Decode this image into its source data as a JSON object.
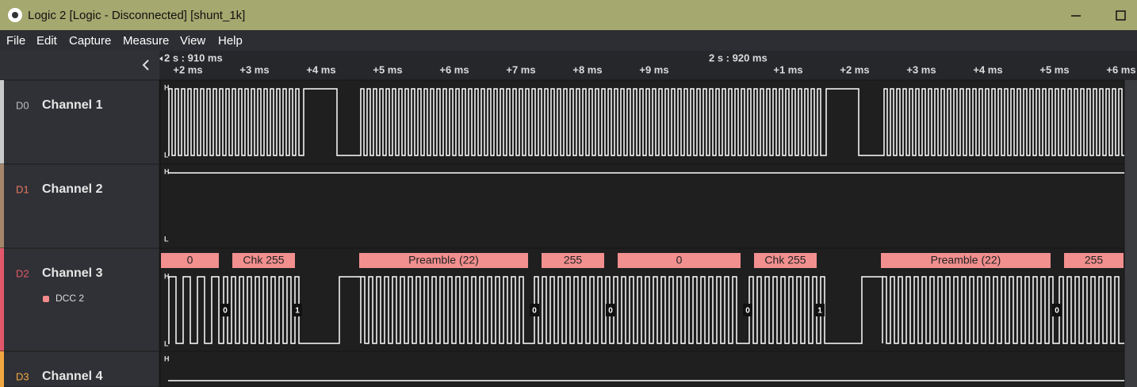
{
  "window": {
    "title": "Logic 2 [Logic - Disconnected] [shunt_1k]"
  },
  "menu": [
    "File",
    "Edit",
    "Capture",
    "Measure",
    "View",
    "Help"
  ],
  "timeline": {
    "markers": [
      "2 s : 910 ms",
      "2 s : 920 ms"
    ],
    "ticks": [
      "+2 ms",
      "+3 ms",
      "+4 ms",
      "+5 ms",
      "+6 ms",
      "+7 ms",
      "+8 ms",
      "+9 ms",
      "+1 ms",
      "+2 ms",
      "+3 ms",
      "+4 ms",
      "+5 ms",
      "+6 ms"
    ]
  },
  "channels": [
    {
      "id": "D0",
      "name": "Channel 1",
      "high": "H",
      "low": "L"
    },
    {
      "id": "D1",
      "name": "Channel 2",
      "high": "H",
      "low": "L"
    },
    {
      "id": "D2",
      "name": "Channel 3",
      "analyzer": "DCC 2",
      "high": "H",
      "low": "L"
    },
    {
      "id": "D3",
      "name": "Channel 4",
      "high": "H"
    }
  ],
  "frames": [
    "0",
    "Chk 255",
    "Preamble (22)",
    "255",
    "0",
    "Chk 255",
    "Preamble (22)",
    "255"
  ],
  "bits": [
    "0",
    "1",
    "0",
    "0",
    "0",
    "1",
    "0"
  ]
}
